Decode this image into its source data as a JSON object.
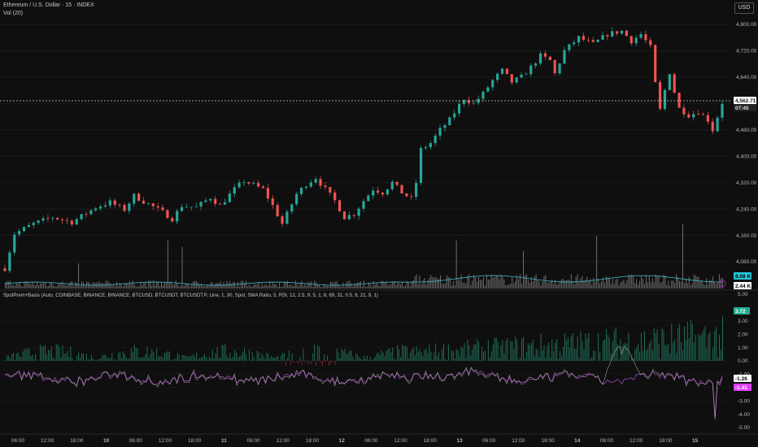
{
  "header": {
    "symbol_line": "Ethereum / U.S. Dollar · 15 · INDEX",
    "volume_line": "Vol (20)",
    "currency_button": "USD"
  },
  "indicator": {
    "title": "SpotPrem+Basis (Auto, COINBASE, BINANCE, BINANCE, BTCUSD, BTCUSDT, BTCUSDT.P, Line, 1, 30, Spot, SMA Ratio, 5, RSI, 12, 2.5, 9, 5, 1, 8, 69, 31, 0.5, 8, 21, 9, 1)"
  },
  "chart_data": [
    {
      "type": "candlestick",
      "title": "Ethereum / U.S. Dollar · 15 · INDEX",
      "y_ticks": [
        "4,800.00",
        "4,720.00",
        "4,640.00",
        "4,560.00",
        "4,480.00",
        "4,400.00",
        "4,320.00",
        "4,240.00",
        "4,160.00",
        "4,080.00"
      ],
      "ylim": [
        4040,
        4820
      ],
      "last_price": "4,562.71",
      "countdown": "07:45",
      "colors": {
        "up": "#26a69a",
        "down": "#ef5350",
        "price_line": "#c8c8c8"
      },
      "close_path": [
        {
          "x": 0,
          "y": 4060
        },
        {
          "x": 2,
          "y": 4165
        },
        {
          "x": 6,
          "y": 4195
        },
        {
          "x": 10,
          "y": 4215
        },
        {
          "x": 14,
          "y": 4200
        },
        {
          "x": 19,
          "y": 4245
        },
        {
          "x": 22,
          "y": 4260
        },
        {
          "x": 25,
          "y": 4238
        },
        {
          "x": 27,
          "y": 4280
        },
        {
          "x": 30,
          "y": 4255
        },
        {
          "x": 33,
          "y": 4230
        },
        {
          "x": 35,
          "y": 4210
        },
        {
          "x": 37,
          "y": 4250
        },
        {
          "x": 40,
          "y": 4245
        },
        {
          "x": 43,
          "y": 4275
        },
        {
          "x": 45,
          "y": 4250
        },
        {
          "x": 48,
          "y": 4300
        },
        {
          "x": 50,
          "y": 4325
        },
        {
          "x": 54,
          "y": 4300
        },
        {
          "x": 56,
          "y": 4250
        },
        {
          "x": 58,
          "y": 4195
        },
        {
          "x": 59,
          "y": 4225
        },
        {
          "x": 61,
          "y": 4285
        },
        {
          "x": 63,
          "y": 4315
        },
        {
          "x": 65,
          "y": 4335
        },
        {
          "x": 67,
          "y": 4300
        },
        {
          "x": 69,
          "y": 4265
        },
        {
          "x": 71,
          "y": 4215
        },
        {
          "x": 73,
          "y": 4225
        },
        {
          "x": 75,
          "y": 4265
        },
        {
          "x": 77,
          "y": 4300
        },
        {
          "x": 79,
          "y": 4290
        },
        {
          "x": 81,
          "y": 4320
        },
        {
          "x": 83,
          "y": 4290
        },
        {
          "x": 85,
          "y": 4270
        },
        {
          "x": 86,
          "y": 4320
        },
        {
          "x": 87,
          "y": 4420
        },
        {
          "x": 89,
          "y": 4440
        },
        {
          "x": 91,
          "y": 4480
        },
        {
          "x": 93,
          "y": 4510
        },
        {
          "x": 95,
          "y": 4555
        },
        {
          "x": 96,
          "y": 4575
        },
        {
          "x": 98,
          "y": 4560
        },
        {
          "x": 100,
          "y": 4590
        },
        {
          "x": 102,
          "y": 4630
        },
        {
          "x": 104,
          "y": 4660
        },
        {
          "x": 106,
          "y": 4625
        },
        {
          "x": 108,
          "y": 4640
        },
        {
          "x": 110,
          "y": 4670
        },
        {
          "x": 112,
          "y": 4705
        },
        {
          "x": 114,
          "y": 4690
        },
        {
          "x": 115,
          "y": 4650
        },
        {
          "x": 117,
          "y": 4720
        },
        {
          "x": 120,
          "y": 4760
        },
        {
          "x": 123,
          "y": 4740
        },
        {
          "x": 126,
          "y": 4770
        },
        {
          "x": 129,
          "y": 4780
        },
        {
          "x": 131,
          "y": 4750
        },
        {
          "x": 133,
          "y": 4770
        },
        {
          "x": 135,
          "y": 4730
        },
        {
          "x": 136,
          "y": 4620
        },
        {
          "x": 137,
          "y": 4540
        },
        {
          "x": 138,
          "y": 4600
        },
        {
          "x": 139,
          "y": 4655
        },
        {
          "x": 140,
          "y": 4595
        },
        {
          "x": 141,
          "y": 4545
        },
        {
          "x": 143,
          "y": 4525
        },
        {
          "x": 145,
          "y": 4535
        },
        {
          "x": 147,
          "y": 4510
        },
        {
          "x": 148,
          "y": 4480
        },
        {
          "x": 149,
          "y": 4520
        },
        {
          "x": 150,
          "y": 4562.71
        }
      ]
    },
    {
      "type": "bar",
      "title": "Vol (20)",
      "badges": [
        "8.08 K",
        "2.44 K"
      ],
      "colors": {
        "bars": "#787878",
        "ma": "#3aa6b9"
      }
    },
    {
      "type": "line",
      "title": "SpotPrem+Basis (Auto, COINBASE, BINANCE, BINANCE, BTCUSD, BTCUSDT, BTCUSDT.P, Line, 1, 30, Spot, SMA Ratio, 5, RSI, 12, 2.5, 9, 5, 1, 8, 69, 31, 0.5, 8, 21, 9, 1)",
      "y_ticks": [
        "5.00",
        "3.00",
        "2.00",
        "1.00",
        "0.00",
        "-1.00",
        "-2.00",
        "-3.00",
        "-4.00",
        "-5.00"
      ],
      "badges": [
        {
          "text": "3.72",
          "color": "#22ab94"
        },
        {
          "text": "-1.26",
          "color": "#ffffff"
        },
        {
          "text": "-1.41",
          "color": "#e040fb"
        }
      ],
      "colors": {
        "premium_bars": "#1f6e58",
        "negative_bars": "#7a1f2b",
        "basis_line": "#8e3fa3",
        "spot_line": "#bdbdbd"
      }
    }
  ],
  "x_axis": {
    "labels": [
      "06:00",
      "12:00",
      "18:00",
      "10",
      "06:00",
      "12:00",
      "18:00",
      "11",
      "06:00",
      "12:00",
      "18:00",
      "12",
      "06:00",
      "12:00",
      "18:00",
      "13",
      "06:00",
      "12:00",
      "18:00",
      "14",
      "06:00",
      "12:00",
      "18:00",
      "15"
    ]
  }
}
